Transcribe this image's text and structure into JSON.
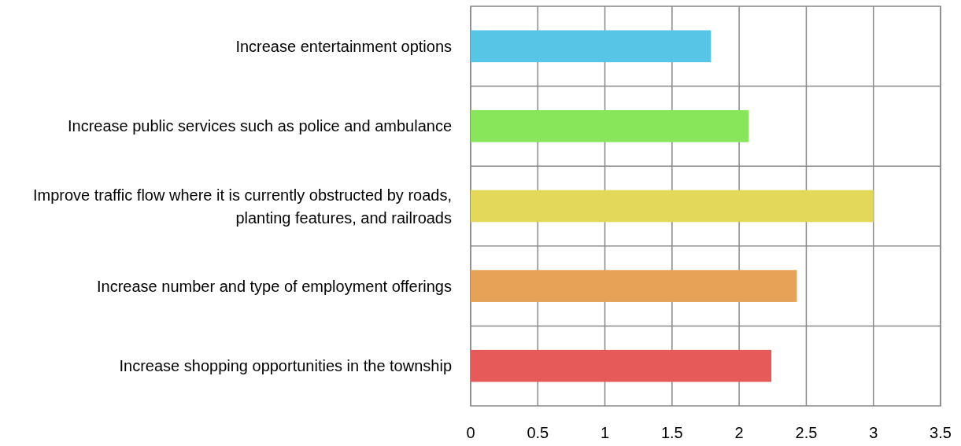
{
  "chart_data": {
    "type": "bar",
    "orientation": "horizontal",
    "categories": [
      "Increase entertainment options",
      "Increase public services such as police and ambulance",
      "Improve traffic flow where it is currently obstructed by roads, planting features, and railroads",
      "Increase number and type of employment offerings",
      "Increase shopping opportunities in the township"
    ],
    "values": [
      1.79,
      2.07,
      3.0,
      2.43,
      2.24
    ],
    "colors": [
      "#56c5e6",
      "#88e65a",
      "#e3d85a",
      "#e6a257",
      "#e65a5a"
    ],
    "xlim": [
      0,
      3.5
    ],
    "xticks": [
      0,
      0.5,
      1,
      1.5,
      2,
      2.5,
      3,
      3.5
    ],
    "grid": true
  }
}
